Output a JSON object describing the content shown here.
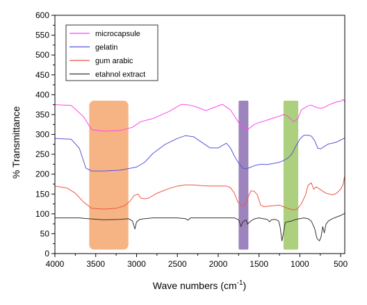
{
  "chart_data": {
    "type": "line",
    "title": "",
    "xlabel": "Wave numbers (cm",
    "xlabel_sup": "-1",
    "xlabel_close": ")",
    "ylabel": "% Transmittance",
    "xlim": [
      4000,
      450
    ],
    "ylim": [
      0,
      600
    ],
    "x_reversed": true,
    "x_ticks": [
      4000,
      3500,
      3000,
      2500,
      2000,
      1500,
      1000,
      500
    ],
    "x_tick_labels": [
      "4000",
      "3500",
      "3000",
      "2500",
      "2000",
      "1500",
      "1000",
      "500"
    ],
    "y_ticks": [
      0,
      50,
      100,
      150,
      200,
      250,
      300,
      350,
      400,
      450,
      500,
      550,
      600
    ],
    "y_tick_labels": [
      "0",
      "50",
      "100",
      "150",
      "200",
      "250",
      "300",
      "350",
      "400",
      "450",
      "500",
      "550",
      "600"
    ],
    "grid": false,
    "legend_position": "top-left",
    "series": [
      {
        "name": "microcapsule",
        "color": "#ff44ee",
        "points": [
          [
            4000,
            375
          ],
          [
            3800,
            373
          ],
          [
            3650,
            345
          ],
          [
            3550,
            312
          ],
          [
            3400,
            308
          ],
          [
            3200,
            310
          ],
          [
            3050,
            318
          ],
          [
            2950,
            332
          ],
          [
            2800,
            340
          ],
          [
            2600,
            358
          ],
          [
            2450,
            376
          ],
          [
            2350,
            374
          ],
          [
            2250,
            368
          ],
          [
            2150,
            360
          ],
          [
            2050,
            368
          ],
          [
            1950,
            376
          ],
          [
            1850,
            362
          ],
          [
            1750,
            330
          ],
          [
            1700,
            318
          ],
          [
            1640,
            312
          ],
          [
            1560,
            325
          ],
          [
            1500,
            330
          ],
          [
            1400,
            336
          ],
          [
            1300,
            343
          ],
          [
            1250,
            346
          ],
          [
            1200,
            350
          ],
          [
            1150,
            346
          ],
          [
            1080,
            332
          ],
          [
            1030,
            338
          ],
          [
            980,
            362
          ],
          [
            900,
            372
          ],
          [
            860,
            374
          ],
          [
            800,
            368
          ],
          [
            740,
            366
          ],
          [
            700,
            368
          ],
          [
            650,
            374
          ],
          [
            600,
            378
          ],
          [
            550,
            382
          ],
          [
            500,
            384
          ],
          [
            470,
            388
          ],
          [
            450,
            382
          ]
        ]
      },
      {
        "name": "gelatin",
        "color": "#5555dd",
        "points": [
          [
            4000,
            290
          ],
          [
            3800,
            288
          ],
          [
            3700,
            265
          ],
          [
            3620,
            215
          ],
          [
            3550,
            208
          ],
          [
            3400,
            208
          ],
          [
            3200,
            210
          ],
          [
            3100,
            214
          ],
          [
            3000,
            218
          ],
          [
            2900,
            230
          ],
          [
            2800,
            252
          ],
          [
            2650,
            275
          ],
          [
            2500,
            290
          ],
          [
            2400,
            297
          ],
          [
            2300,
            294
          ],
          [
            2200,
            280
          ],
          [
            2100,
            266
          ],
          [
            2000,
            266
          ],
          [
            1900,
            278
          ],
          [
            1850,
            266
          ],
          [
            1800,
            245
          ],
          [
            1750,
            228
          ],
          [
            1700,
            215
          ],
          [
            1660,
            213
          ],
          [
            1620,
            216
          ],
          [
            1550,
            222
          ],
          [
            1500,
            224
          ],
          [
            1450,
            225
          ],
          [
            1400,
            224
          ],
          [
            1350,
            226
          ],
          [
            1300,
            228
          ],
          [
            1250,
            230
          ],
          [
            1200,
            234
          ],
          [
            1150,
            240
          ],
          [
            1100,
            250
          ],
          [
            1050,
            270
          ],
          [
            1000,
            288
          ],
          [
            950,
            298
          ],
          [
            900,
            298
          ],
          [
            860,
            296
          ],
          [
            820,
            285
          ],
          [
            780,
            265
          ],
          [
            740,
            264
          ],
          [
            700,
            270
          ],
          [
            650,
            276
          ],
          [
            600,
            278
          ],
          [
            550,
            281
          ],
          [
            500,
            286
          ],
          [
            450,
            291
          ]
        ]
      },
      {
        "name": "gum arabic",
        "color": "#ee5544",
        "points": [
          [
            4000,
            170
          ],
          [
            3850,
            165
          ],
          [
            3750,
            152
          ],
          [
            3650,
            130
          ],
          [
            3550,
            114
          ],
          [
            3400,
            112
          ],
          [
            3250,
            114
          ],
          [
            3150,
            120
          ],
          [
            3080,
            132
          ],
          [
            3030,
            146
          ],
          [
            2980,
            150
          ],
          [
            2950,
            140
          ],
          [
            2900,
            138
          ],
          [
            2850,
            140
          ],
          [
            2750,
            152
          ],
          [
            2600,
            164
          ],
          [
            2500,
            170
          ],
          [
            2400,
            173
          ],
          [
            2300,
            173
          ],
          [
            2200,
            171
          ],
          [
            2100,
            170
          ],
          [
            2000,
            170
          ],
          [
            1900,
            170
          ],
          [
            1850,
            166
          ],
          [
            1800,
            152
          ],
          [
            1760,
            130
          ],
          [
            1720,
            122
          ],
          [
            1680,
            120
          ],
          [
            1640,
            138
          ],
          [
            1600,
            158
          ],
          [
            1560,
            157
          ],
          [
            1520,
            148
          ],
          [
            1480,
            122
          ],
          [
            1440,
            118
          ],
          [
            1400,
            119
          ],
          [
            1350,
            120
          ],
          [
            1300,
            121
          ],
          [
            1250,
            122
          ],
          [
            1200,
            118
          ],
          [
            1150,
            114
          ],
          [
            1080,
            110
          ],
          [
            1030,
            112
          ],
          [
            980,
            126
          ],
          [
            930,
            148
          ],
          [
            900,
            172
          ],
          [
            860,
            178
          ],
          [
            830,
            162
          ],
          [
            800,
            168
          ],
          [
            760,
            163
          ],
          [
            720,
            157
          ],
          [
            680,
            152
          ],
          [
            640,
            150
          ],
          [
            600,
            148
          ],
          [
            550,
            152
          ],
          [
            500,
            162
          ],
          [
            470,
            175
          ],
          [
            450,
            196
          ]
        ]
      },
      {
        "name": "etahnol extract",
        "color": "#333333",
        "points": [
          [
            4000,
            90
          ],
          [
            3700,
            90
          ],
          [
            3600,
            88
          ],
          [
            3400,
            85
          ],
          [
            3200,
            86
          ],
          [
            3100,
            88
          ],
          [
            3050,
            82
          ],
          [
            3020,
            62
          ],
          [
            3000,
            80
          ],
          [
            2960,
            86
          ],
          [
            2900,
            88
          ],
          [
            2800,
            90
          ],
          [
            2600,
            90
          ],
          [
            2500,
            90
          ],
          [
            2400,
            88
          ],
          [
            2370,
            84
          ],
          [
            2340,
            90
          ],
          [
            2200,
            90
          ],
          [
            2000,
            90
          ],
          [
            1800,
            90
          ],
          [
            1750,
            85
          ],
          [
            1720,
            68
          ],
          [
            1700,
            80
          ],
          [
            1660,
            85
          ],
          [
            1640,
            74
          ],
          [
            1600,
            82
          ],
          [
            1550,
            88
          ],
          [
            1500,
            90
          ],
          [
            1450,
            88
          ],
          [
            1400,
            86
          ],
          [
            1370,
            80
          ],
          [
            1350,
            85
          ],
          [
            1300,
            86
          ],
          [
            1260,
            82
          ],
          [
            1240,
            65
          ],
          [
            1220,
            32
          ],
          [
            1200,
            52
          ],
          [
            1180,
            78
          ],
          [
            1150,
            80
          ],
          [
            1100,
            82
          ],
          [
            1050,
            86
          ],
          [
            1000,
            88
          ],
          [
            950,
            90
          ],
          [
            900,
            88
          ],
          [
            860,
            82
          ],
          [
            820,
            64
          ],
          [
            790,
            38
          ],
          [
            760,
            32
          ],
          [
            740,
            42
          ],
          [
            720,
            68
          ],
          [
            700,
            52
          ],
          [
            680,
            74
          ],
          [
            650,
            82
          ],
          [
            600,
            88
          ],
          [
            550,
            92
          ],
          [
            500,
            96
          ],
          [
            460,
            100
          ],
          [
            450,
            102
          ]
        ]
      }
    ],
    "highlight_bands": [
      {
        "x_start": 3580,
        "x_end": 3100,
        "y_start": 385,
        "y_end": 10,
        "color": "#f4a770"
      },
      {
        "x_start": 1750,
        "x_end": 1630,
        "y_start": 385,
        "y_end": 10,
        "color": "#8c6fb0"
      },
      {
        "x_start": 1200,
        "x_end": 1020,
        "y_start": 385,
        "y_end": 10,
        "color": "#9ec866"
      }
    ]
  }
}
